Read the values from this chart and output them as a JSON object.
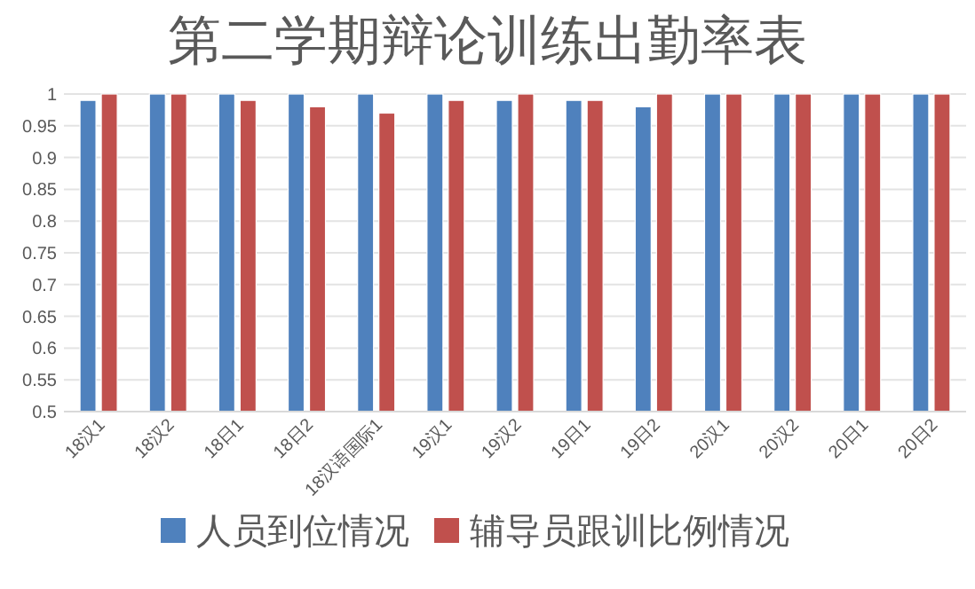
{
  "chart_data": {
    "type": "bar",
    "title": "第二学期辩论训练出勤率表",
    "categories": [
      "18汉1",
      "18汉2",
      "18日1",
      "18日2",
      "18汉语国际1",
      "19汉1",
      "19汉2",
      "19日1",
      "19日2",
      "20汉1",
      "20汉2",
      "20日1",
      "20日2"
    ],
    "series": [
      {
        "name": "人员到位情况",
        "color": "#4f81bd",
        "values": [
          0.99,
          1,
          1,
          1,
          1,
          1,
          0.99,
          0.99,
          0.98,
          1,
          1,
          1,
          1
        ]
      },
      {
        "name": "辅导员跟训比例情况",
        "color": "#c0504d",
        "values": [
          1,
          1,
          0.99,
          0.98,
          0.97,
          0.99,
          1,
          0.99,
          1,
          1,
          1,
          1,
          1
        ]
      }
    ],
    "ylim": [
      0.5,
      1
    ],
    "yticks": [
      0.5,
      0.55,
      0.6,
      0.65,
      0.7,
      0.75,
      0.8,
      0.85,
      0.9,
      0.95,
      1
    ],
    "grid": "y",
    "legend": "bottom"
  }
}
